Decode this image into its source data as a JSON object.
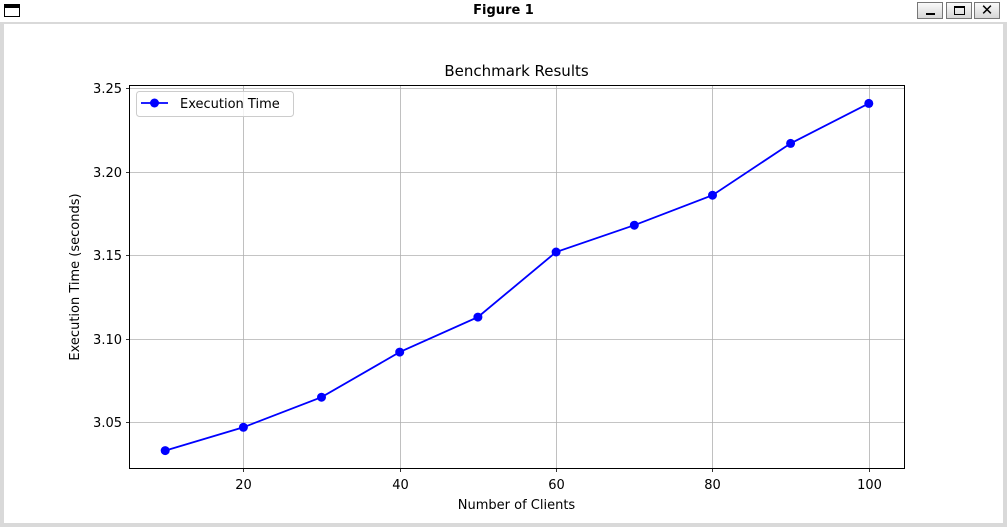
{
  "window": {
    "title": "Figure 1",
    "minimize_icon": "minimize-icon",
    "maximize_icon": "maximize-icon",
    "close_icon": "close-icon",
    "close_glyph": "✕"
  },
  "chart_data": {
    "type": "line",
    "title": "Benchmark Results",
    "xlabel": "Number of Clients",
    "ylabel": "Execution Time (seconds)",
    "x": [
      10,
      20,
      30,
      40,
      50,
      60,
      70,
      80,
      90,
      100
    ],
    "series": [
      {
        "name": "Execution Time",
        "color": "#0000ff",
        "marker": "circle",
        "values": [
          3.033,
          3.047,
          3.065,
          3.092,
          3.113,
          3.152,
          3.168,
          3.186,
          3.217,
          3.241
        ]
      }
    ],
    "xlim": [
      5.5,
      104.5
    ],
    "ylim": [
      3.0226,
      3.2514
    ],
    "xticks": [
      20,
      40,
      60,
      80,
      100
    ],
    "xtick_labels": [
      "20",
      "40",
      "60",
      "80",
      "100"
    ],
    "yticks": [
      3.05,
      3.1,
      3.15,
      3.2,
      3.25
    ],
    "ytick_labels": [
      "3.05",
      "3.10",
      "3.15",
      "3.20",
      "3.25"
    ],
    "grid": true,
    "legend": "top-left"
  }
}
